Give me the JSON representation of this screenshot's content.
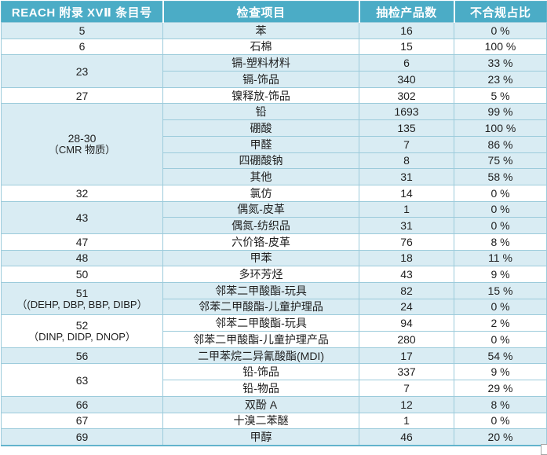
{
  "chart_data": {
    "type": "table",
    "columns": [
      "REACH 附录 XVⅡ 条目号",
      "检查项目",
      "抽检产品数",
      "不合规占比"
    ],
    "groups": [
      {
        "entry": "5",
        "shade": "light",
        "items": [
          {
            "name": "苯",
            "count": "16",
            "rate": "0 %"
          }
        ]
      },
      {
        "entry": "6",
        "shade": "white",
        "items": [
          {
            "name": "石棉",
            "count": "15",
            "rate": "100 %"
          }
        ]
      },
      {
        "entry": "23",
        "shade": "light",
        "items": [
          {
            "name": "镉-塑料材料",
            "count": "6",
            "rate": "33 %"
          },
          {
            "name": "镉-饰品",
            "count": "340",
            "rate": "23 %"
          }
        ]
      },
      {
        "entry": "27",
        "shade": "white",
        "items": [
          {
            "name": "镍释放-饰品",
            "count": "302",
            "rate": "5 %"
          }
        ]
      },
      {
        "entry": "28-30",
        "entry_note": "（CMR 物质）",
        "shade": "light",
        "items": [
          {
            "name": "铅",
            "count": "1693",
            "rate": "99 %"
          },
          {
            "name": "硼酸",
            "count": "135",
            "rate": "100 %"
          },
          {
            "name": "甲醛",
            "count": "7",
            "rate": "86 %"
          },
          {
            "name": "四硼酸钠",
            "count": "8",
            "rate": "75 %"
          },
          {
            "name": "其他",
            "count": "31",
            "rate": "58 %"
          }
        ]
      },
      {
        "entry": "32",
        "shade": "white",
        "items": [
          {
            "name": "氯仿",
            "count": "14",
            "rate": "0 %"
          }
        ]
      },
      {
        "entry": "43",
        "shade": "light",
        "items": [
          {
            "name": "偶氮-皮革",
            "count": "1",
            "rate": "0 %"
          },
          {
            "name": "偶氮-纺织品",
            "count": "31",
            "rate": "0 %"
          }
        ]
      },
      {
        "entry": "47",
        "shade": "white",
        "items": [
          {
            "name": "六价铬-皮革",
            "count": "76",
            "rate": "8 %"
          }
        ]
      },
      {
        "entry": "48",
        "shade": "light",
        "items": [
          {
            "name": "甲苯",
            "count": "18",
            "rate": "11 %"
          }
        ]
      },
      {
        "entry": "50",
        "shade": "white",
        "items": [
          {
            "name": "多环芳烃",
            "count": "43",
            "rate": "9 %"
          }
        ]
      },
      {
        "entry": "51",
        "entry_note": "（(DEHP, DBP, BBP, DIBP）",
        "shade": "light",
        "items": [
          {
            "name": "邻苯二甲酸酯-玩具",
            "count": "82",
            "rate": "15 %"
          },
          {
            "name": "邻苯二甲酸酯-儿童护理品",
            "count": "24",
            "rate": "0 %"
          }
        ]
      },
      {
        "entry": "52",
        "entry_note": "（DINP, DIDP, DNOP）",
        "shade": "white",
        "items": [
          {
            "name": "邻苯二甲酸酯-玩具",
            "count": "94",
            "rate": "2 %"
          },
          {
            "name": "邻苯二甲酸酯-儿童护理产品",
            "count": "280",
            "rate": "0 %"
          }
        ]
      },
      {
        "entry": "56",
        "shade": "light",
        "items": [
          {
            "name": "二甲苯烷二异氰酸酯(MDI)",
            "count": "17",
            "rate": "54 %"
          }
        ]
      },
      {
        "entry": "63",
        "shade": "white",
        "items": [
          {
            "name": "铅-饰品",
            "count": "337",
            "rate": "9 %"
          },
          {
            "name": "铅-物品",
            "count": "7",
            "rate": "29 %"
          }
        ]
      },
      {
        "entry": "66",
        "shade": "light",
        "items": [
          {
            "name": "双酚 A",
            "count": "12",
            "rate": "8 %"
          }
        ]
      },
      {
        "entry": "67",
        "shade": "white",
        "items": [
          {
            "name": "十溴二苯醚",
            "count": "1",
            "rate": "0 %"
          }
        ]
      },
      {
        "entry": "69",
        "shade": "light",
        "items": [
          {
            "name": "甲醇",
            "count": "46",
            "rate": "20 %"
          }
        ]
      }
    ]
  },
  "colors": {
    "header_bg": "#4BACC6",
    "header_text": "#FFFFFF",
    "row_light_bg": "#D9ECF3",
    "row_white_bg": "#FFFFFF",
    "grid_border": "#9CCBDB",
    "outer_border": "#62B4CC",
    "text": "#1F1F1F"
  }
}
